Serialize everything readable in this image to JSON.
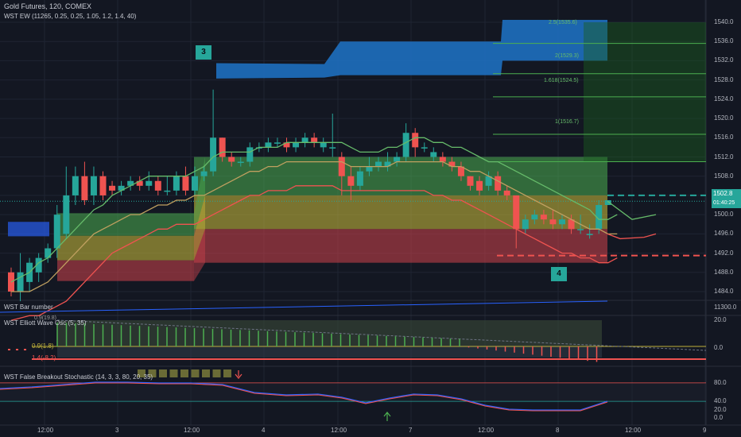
{
  "header": {
    "symbol_line": "Gold Futures, 120, COMEX",
    "indicator_line": "WST EW (11265, 0.25, 0.25, 1.05, 1.2, 1.4, 40)"
  },
  "markers": [
    {
      "label": "3",
      "color": "#26a69a"
    },
    {
      "label": "4",
      "color": "#26a69a"
    }
  ],
  "fib_levels": [
    {
      "label": "2.5(1535.6)"
    },
    {
      "label": "2(1529.3)"
    },
    {
      "label": "1.618(1524.5)"
    },
    {
      "label": "1(1516.7)"
    }
  ],
  "price_axis": {
    "ticks": [
      "1540.0",
      "1536.0",
      "1532.0",
      "1528.0",
      "1524.0",
      "1520.0",
      "1516.0",
      "1512.0",
      "1508.0",
      "1504.0",
      "1500.0",
      "1496.0",
      "1492.0",
      "1488.0",
      "1484.0"
    ],
    "current_price": "1502.8",
    "countdown": "01:40:25"
  },
  "panes": {
    "bar_number": {
      "title": "WST Bar number",
      "tick": "11300.0"
    },
    "elliott_osc": {
      "title": "WST Elliott Wave Osc (5, 35)",
      "ticks": [
        "20.0",
        "0.0"
      ],
      "levels": [
        "0.9(19.8)",
        "0.9(1.8)",
        "1.4(-8.2)"
      ]
    },
    "stochastic": {
      "title": "WST False Breakout Stochastic (14, 3, 3, 80, 20, 35)",
      "ticks": [
        "80.0",
        "40.0",
        "20.0",
        "0.0"
      ]
    }
  },
  "time_axis": {
    "ticks": [
      "12:00",
      "3",
      "12:00",
      "4",
      "12:00",
      "7",
      "12:00",
      "8",
      "12:00",
      "9"
    ]
  },
  "colors": {
    "background": "#131722",
    "up": "#26a69a",
    "down": "#ef5350",
    "zone_green": "#4caf50",
    "zone_yellow": "#c0b23a",
    "zone_red": "#c2404a",
    "target_blue": "#2962ff",
    "fib_green": "#4caf50"
  },
  "chart_data": {
    "type": "candlestick",
    "candles": [
      [
        1488,
        1484,
        1489,
        1483
      ],
      [
        1484,
        1488,
        1492,
        1482
      ],
      [
        1486,
        1490,
        1491,
        1484
      ],
      [
        1488,
        1491,
        1492,
        1486
      ],
      [
        1491,
        1493,
        1494,
        1490
      ],
      [
        1493,
        1500,
        1502,
        1491
      ],
      [
        1496,
        1504,
        1510,
        1495
      ],
      [
        1504,
        1508,
        1510,
        1502
      ],
      [
        1508,
        1503,
        1511,
        1502
      ],
      [
        1504,
        1508,
        1510,
        1502
      ],
      [
        1508,
        1504,
        1509,
        1503
      ],
      [
        1506,
        1505,
        1507,
        1504
      ],
      [
        1505,
        1506,
        1507,
        1504
      ],
      [
        1506,
        1507,
        1508,
        1505
      ],
      [
        1507,
        1506,
        1508,
        1505
      ],
      [
        1506,
        1507,
        1509,
        1505
      ],
      [
        1507,
        1505,
        1508,
        1504
      ],
      [
        1505,
        1505,
        1508,
        1504
      ],
      [
        1505,
        1508,
        1509,
        1504
      ],
      [
        1508,
        1505,
        1510,
        1504
      ],
      [
        1505,
        1508,
        1510,
        1504
      ],
      [
        1508,
        1509,
        1510,
        1507
      ],
      [
        1509,
        1516,
        1526,
        1508
      ],
      [
        1516,
        1512,
        1516,
        1511
      ],
      [
        1512,
        1511,
        1513,
        1510
      ],
      [
        1511,
        1511,
        1512,
        1510
      ],
      [
        1511,
        1514,
        1515,
        1510
      ],
      [
        1514,
        1514,
        1515,
        1513
      ],
      [
        1514,
        1515,
        1516,
        1513
      ],
      [
        1515,
        1515,
        1516,
        1514
      ],
      [
        1515,
        1514,
        1516,
        1513
      ],
      [
        1514,
        1515,
        1516,
        1513
      ],
      [
        1515,
        1516,
        1517,
        1514
      ],
      [
        1516,
        1515,
        1517,
        1514
      ],
      [
        1514,
        1515,
        1516,
        1513
      ],
      [
        1514,
        1514,
        1521,
        1512
      ],
      [
        1512,
        1508,
        1513,
        1504
      ],
      [
        1508,
        1506,
        1510,
        1503
      ],
      [
        1506,
        1509,
        1510,
        1505
      ],
      [
        1509,
        1510,
        1512,
        1508
      ],
      [
        1510,
        1511,
        1512,
        1509
      ],
      [
        1510,
        1511,
        1513,
        1509
      ],
      [
        1511,
        1512,
        1513,
        1510
      ],
      [
        1512,
        1517,
        1519,
        1511
      ],
      [
        1517,
        1514,
        1518,
        1512
      ],
      [
        1514,
        1514,
        1515,
        1513
      ],
      [
        1512,
        1513,
        1514,
        1511
      ],
      [
        1512,
        1511,
        1513,
        1510
      ],
      [
        1511,
        1510,
        1512,
        1509
      ],
      [
        1510,
        1508,
        1511,
        1507
      ],
      [
        1508,
        1506,
        1508,
        1505
      ],
      [
        1507,
        1505,
        1508,
        1504
      ],
      [
        1506,
        1508,
        1509,
        1505
      ],
      [
        1508,
        1505,
        1509,
        1504
      ],
      [
        1505,
        1504,
        1506,
        1503
      ],
      [
        1504,
        1497,
        1504,
        1493
      ],
      [
        1497,
        1499,
        1500,
        1496
      ],
      [
        1499,
        1500,
        1501,
        1498
      ],
      [
        1500,
        1499,
        1501,
        1498
      ],
      [
        1499,
        1498,
        1501,
        1497
      ],
      [
        1498,
        1499,
        1500,
        1497
      ],
      [
        1499,
        1497,
        1500,
        1496
      ],
      [
        1497,
        1497,
        1500,
        1496
      ],
      [
        1496,
        1496,
        1498,
        1495
      ],
      [
        1497,
        1502,
        1503,
        1496
      ],
      [
        1502,
        1503,
        1503,
        1502
      ]
    ],
    "zones": [
      {
        "name": "green",
        "from": 1504,
        "to": 1512
      },
      {
        "name": "yellow",
        "from": 1497,
        "to": 1504
      },
      {
        "name": "red",
        "from": 1490,
        "to": 1497
      }
    ]
  }
}
